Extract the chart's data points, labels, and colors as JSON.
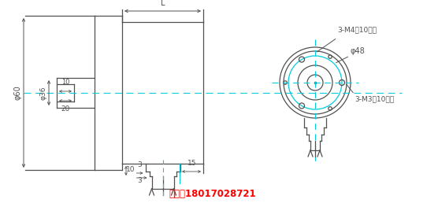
{
  "bg_color": "#ffffff",
  "line_color": "#505050",
  "cyan_color": "#00ccdd",
  "red_color": "#ff0000",
  "phone_text": "手机：18017028721",
  "label_3m4": "3-M4深10均布",
  "label_phi48": "φ48",
  "label_3m3": "3-M3深10均布",
  "label_phi60": "φ60",
  "label_phi36": "φ36",
  "label_L": "L",
  "dim_20": "20",
  "dim_10a": "10",
  "dim_10b": "10",
  "dim_15": "15",
  "dim_3a": "3",
  "dim_3b": "3"
}
